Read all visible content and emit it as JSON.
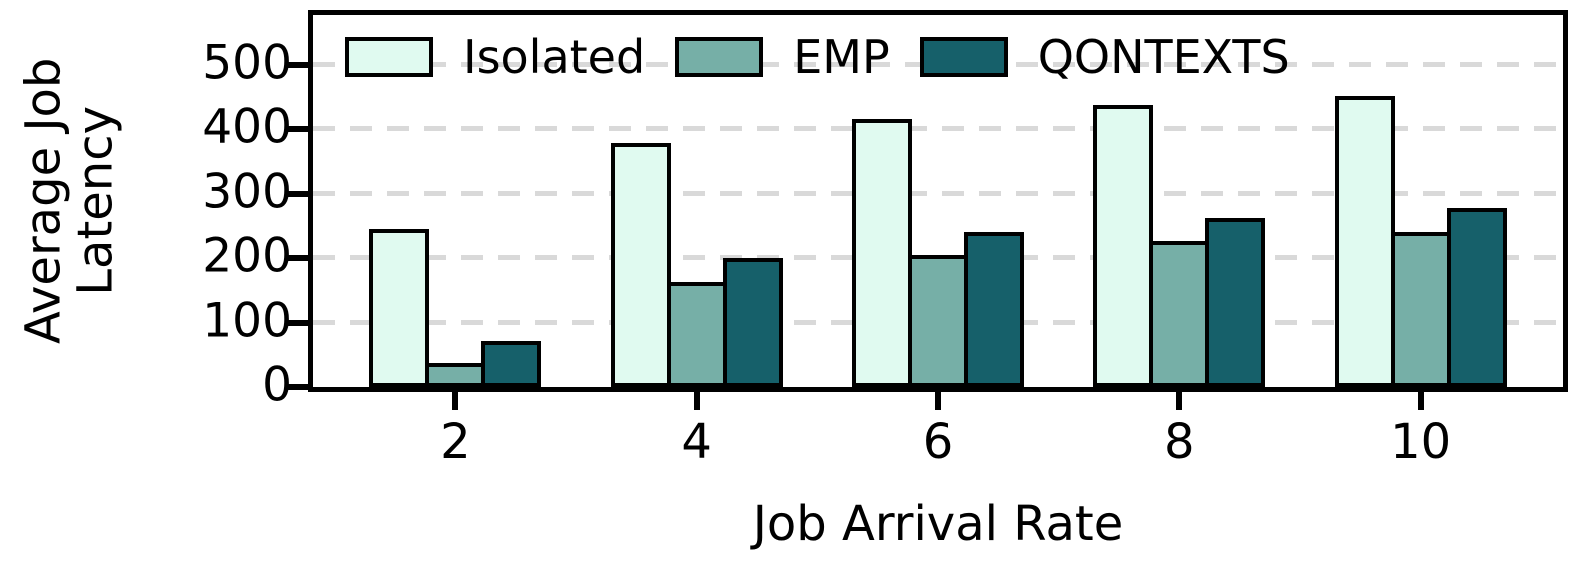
{
  "figure": {
    "background": "#ffffff",
    "spine_color": "#000000",
    "grid_color": "#d9d9d9"
  },
  "chart_data": {
    "type": "bar",
    "title": "",
    "xlabel": "Job Arrival Rate",
    "ylabel": "Average Job Latency",
    "ylabel_lines": [
      "Average Job",
      "Latency"
    ],
    "categories": [
      "2",
      "4",
      "6",
      "8",
      "10"
    ],
    "series": [
      {
        "name": "Isolated",
        "color": "#e0faf0",
        "values": [
          245,
          378,
          415,
          438,
          452
        ]
      },
      {
        "name": "EMP",
        "color": "#76afa7",
        "values": [
          38,
          163,
          204,
          227,
          240
        ]
      },
      {
        "name": "QONTEXTS",
        "color": "#16606a",
        "values": [
          72,
          200,
          240,
          262,
          277
        ]
      }
    ],
    "yticks": [
      0,
      100,
      200,
      300,
      400,
      500
    ],
    "ylim": [
      0,
      577
    ],
    "grid": "horizontal-dashed",
    "legend_position": "top-inside",
    "bar_edge_color": "#000000"
  }
}
